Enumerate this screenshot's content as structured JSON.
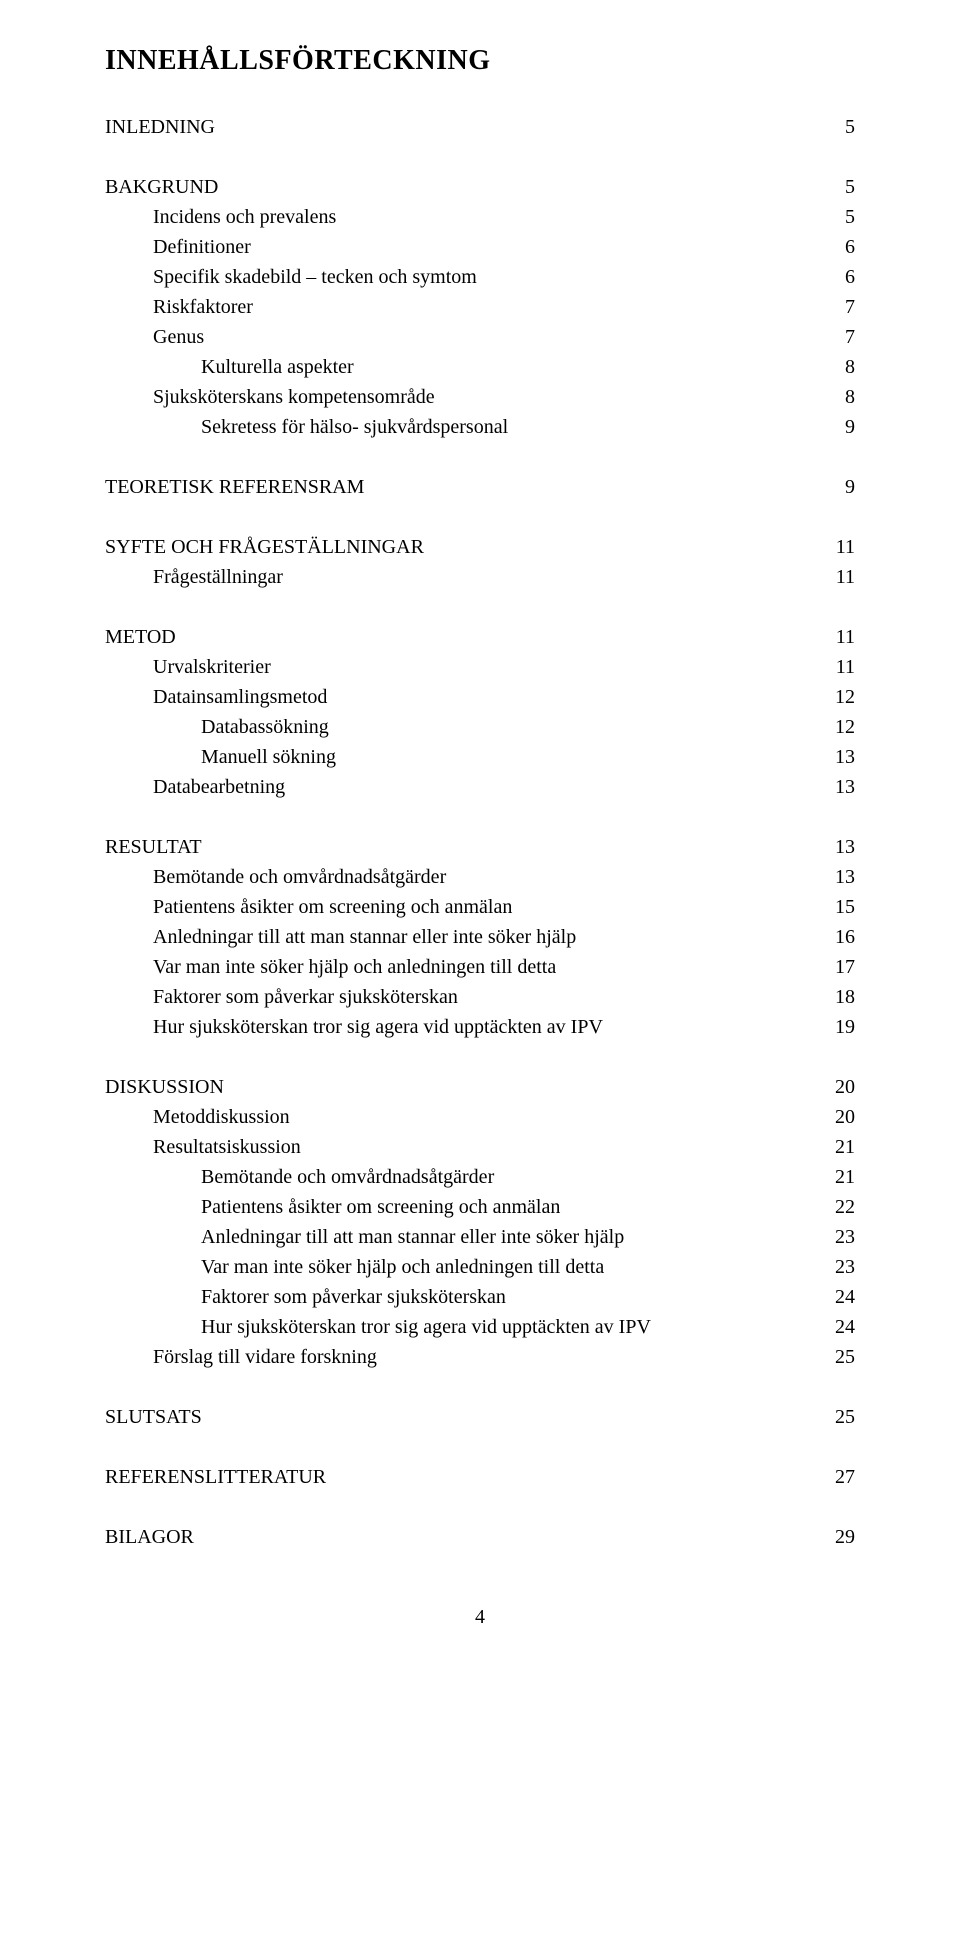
{
  "title": "INNEHÅLLSFÖRTECKNING",
  "sections": [
    {
      "rows": [
        {
          "label": "INLEDNING",
          "page": "5",
          "indent": 0
        }
      ]
    },
    {
      "rows": [
        {
          "label": "BAKGRUND",
          "page": "5",
          "indent": 0
        },
        {
          "label": "Incidens och prevalens",
          "page": "5",
          "indent": 1
        },
        {
          "label": "Definitioner",
          "page": "6",
          "indent": 1
        },
        {
          "label": "Specifik skadebild – tecken och symtom",
          "page": "6",
          "indent": 1
        },
        {
          "label": "Riskfaktorer",
          "page": "7",
          "indent": 1
        },
        {
          "label": "Genus",
          "page": "7",
          "indent": 1
        },
        {
          "label": "Kulturella aspekter",
          "page": "8",
          "indent": 2
        },
        {
          "label": "Sjuksköterskans kompetensområde",
          "page": "8",
          "indent": 1
        },
        {
          "label": "Sekretess för hälso- sjukvårdspersonal",
          "page": "9",
          "indent": 2
        }
      ]
    },
    {
      "rows": [
        {
          "label": "TEORETISK REFERENSRAM",
          "page": "9",
          "indent": 0
        }
      ]
    },
    {
      "rows": [
        {
          "label": "SYFTE OCH FRÅGESTÄLLNINGAR",
          "page": "11",
          "indent": 0
        },
        {
          "label": "Frågeställningar",
          "page": "11",
          "indent": 1
        }
      ]
    },
    {
      "rows": [
        {
          "label": "METOD",
          "page": "11",
          "indent": 0
        },
        {
          "label": "Urvalskriterier",
          "page": "11",
          "indent": 1
        },
        {
          "label": "Datainsamlingsmetod",
          "page": "12",
          "indent": 1
        },
        {
          "label": "Databassökning",
          "page": "12",
          "indent": 2
        },
        {
          "label": "Manuell sökning",
          "page": "13",
          "indent": 2
        },
        {
          "label": "Databearbetning",
          "page": "13",
          "indent": 1
        }
      ]
    },
    {
      "rows": [
        {
          "label": "RESULTAT",
          "page": "13",
          "indent": 0
        },
        {
          "label": "Bemötande och omvårdnadsåtgärder",
          "page": "13",
          "indent": 1
        },
        {
          "label": "Patientens åsikter om screening och anmälan",
          "page": "15",
          "indent": 1
        },
        {
          "label": "Anledningar till att man stannar eller inte söker hjälp",
          "page": "16",
          "indent": 1
        },
        {
          "label": "Var man inte söker hjälp och anledningen till detta",
          "page": "17",
          "indent": 1
        },
        {
          "label": "Faktorer som påverkar sjuksköterskan",
          "page": "18",
          "indent": 1
        },
        {
          "label": "Hur sjuksköterskan tror sig agera vid upptäckten av IPV",
          "page": "19",
          "indent": 1
        }
      ]
    },
    {
      "rows": [
        {
          "label": "DISKUSSION",
          "page": "20",
          "indent": 0
        },
        {
          "label": "Metoddiskussion",
          "page": "20",
          "indent": 1
        },
        {
          "label": "Resultatsiskussion",
          "page": "21",
          "indent": 1
        },
        {
          "label": "Bemötande och omvårdnadsåtgärder",
          "page": "21",
          "indent": 2
        },
        {
          "label": "Patientens åsikter om screening och anmälan",
          "page": "22",
          "indent": 2
        },
        {
          "label": "Anledningar till att man stannar eller inte söker hjälp",
          "page": "23",
          "indent": 2
        },
        {
          "label": "Var man inte söker hjälp och anledningen till detta",
          "page": "23",
          "indent": 2
        },
        {
          "label": "Faktorer som påverkar sjuksköterskan",
          "page": "24",
          "indent": 2
        },
        {
          "label": "Hur sjuksköterskan tror sig agera vid upptäckten av IPV",
          "page": "24",
          "indent": 2
        },
        {
          "label": "Förslag till vidare forskning",
          "page": "25",
          "indent": 1
        }
      ]
    },
    {
      "rows": [
        {
          "label": "SLUTSATS",
          "page": "25",
          "indent": 0
        }
      ]
    },
    {
      "rows": [
        {
          "label": "REFERENSLITTERATUR",
          "page": "27",
          "indent": 0
        }
      ]
    },
    {
      "rows": [
        {
          "label": "BILAGOR",
          "page": "29",
          "indent": 0
        }
      ]
    }
  ],
  "pageNumber": "4"
}
